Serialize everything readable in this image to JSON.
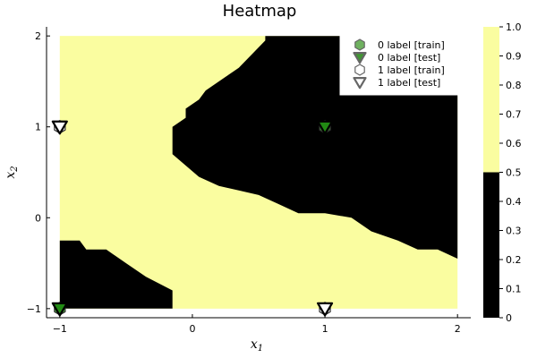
{
  "chart_data": {
    "type": "heatmap",
    "title": "Heatmap",
    "xlabel": "x",
    "xlabel_sub": "1",
    "ylabel": "x",
    "ylabel_sub": "2",
    "xlim": [
      -1.1,
      2.1
    ],
    "ylim": [
      -1.1,
      2.1
    ],
    "xticks": [
      -1,
      0,
      1,
      2
    ],
    "yticks": [
      -1,
      0,
      1,
      2
    ],
    "grid": false,
    "colorbar": {
      "min": 0,
      "max": 1,
      "ticks": [
        "0",
        "0.1",
        "0.2",
        "0.3",
        "0.4",
        "0.5",
        "0.6",
        "0.7",
        "0.8",
        "0.9",
        "1.0"
      ],
      "bands": [
        {
          "from": 0,
          "to": 0.5,
          "color": "#000000"
        },
        {
          "from": 0.5,
          "to": 1.0,
          "color": "#fafda0"
        }
      ]
    },
    "heatmap": {
      "x_range": [
        -1,
        2
      ],
      "y_range": [
        -1,
        2
      ],
      "background_value": 1,
      "background_color": "#fafda0",
      "regions": [
        {
          "value": 0,
          "color": "#000000",
          "polygon": [
            [
              0.55,
              2.0
            ],
            [
              2.0,
              2.0
            ],
            [
              2.0,
              -0.45
            ],
            [
              1.85,
              -0.35
            ],
            [
              1.7,
              -0.35
            ],
            [
              1.55,
              -0.25
            ],
            [
              1.35,
              -0.15
            ],
            [
              1.2,
              0.0
            ],
            [
              1.0,
              0.05
            ],
            [
              0.8,
              0.05
            ],
            [
              0.65,
              0.15
            ],
            [
              0.5,
              0.25
            ],
            [
              0.35,
              0.3
            ],
            [
              0.2,
              0.35
            ],
            [
              0.05,
              0.45
            ],
            [
              -0.15,
              0.7
            ],
            [
              -0.15,
              1.0
            ],
            [
              -0.05,
              1.1
            ],
            [
              -0.05,
              1.2
            ],
            [
              0.05,
              1.3
            ],
            [
              0.1,
              1.4
            ],
            [
              0.25,
              1.55
            ],
            [
              0.35,
              1.65
            ],
            [
              0.45,
              1.8
            ],
            [
              0.55,
              1.95
            ]
          ]
        },
        {
          "value": 0,
          "color": "#000000",
          "polygon": [
            [
              -1.0,
              -0.25
            ],
            [
              -0.85,
              -0.25
            ],
            [
              -0.8,
              -0.35
            ],
            [
              -0.65,
              -0.35
            ],
            [
              -0.5,
              -0.5
            ],
            [
              -0.35,
              -0.65
            ],
            [
              -0.15,
              -0.8
            ],
            [
              -0.15,
              -1.0
            ],
            [
              -1.0,
              -1.0
            ]
          ]
        }
      ]
    },
    "series": [
      {
        "name": "0 label [train]",
        "marker": "hexagon",
        "color": "#3a9a2a",
        "points": [
          [
            -1,
            -1
          ],
          [
            1,
            1
          ]
        ]
      },
      {
        "name": "0 label [test]",
        "marker": "triangle-down",
        "color": "#1f8a12",
        "points": [
          [
            -1,
            -1
          ],
          [
            1,
            1
          ]
        ]
      },
      {
        "name": "1 label [train]",
        "marker": "hexagon",
        "color": "#ffffff",
        "points": [
          [
            -1,
            1
          ],
          [
            1,
            -1
          ]
        ]
      },
      {
        "name": "1 label [test]",
        "marker": "triangle-down",
        "color": "#ffffff",
        "points": [
          [
            -1,
            1
          ],
          [
            1,
            -1
          ]
        ]
      }
    ],
    "legend_position": "top-right"
  }
}
